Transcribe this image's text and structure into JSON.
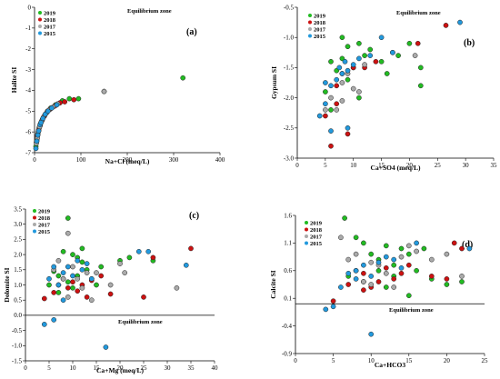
{
  "colors": {
    "2019": "#22bb22",
    "2018": "#cc1111",
    "2017": "#aaaaaa",
    "2015": "#2299dd"
  },
  "chart_data": [
    {
      "type": "scatter",
      "panel_label": "(a)",
      "xlabel": "Na+Cl (meq/L)",
      "ylabel": "Halite SI",
      "xlim": [
        0,
        400
      ],
      "ylim": [
        -7,
        0
      ],
      "xticks": [
        0,
        100,
        200,
        300,
        400
      ],
      "yticks": [
        0,
        -1,
        -2,
        -3,
        -4,
        -5,
        -6,
        -7
      ],
      "zero_line": false,
      "annotation": "Equilibrium zone",
      "legend": [
        "2019",
        "2018",
        "2017",
        "2015"
      ],
      "series": [
        {
          "name": "2019",
          "points": [
            [
              3,
              -6.7
            ],
            [
              5,
              -6.4
            ],
            [
              7,
              -6.1
            ],
            [
              10,
              -5.8
            ],
            [
              13,
              -5.6
            ],
            [
              17,
              -5.4
            ],
            [
              22,
              -5.2
            ],
            [
              28,
              -5.0
            ],
            [
              35,
              -4.85
            ],
            [
              45,
              -4.7
            ],
            [
              60,
              -4.5
            ],
            [
              75,
              -4.4
            ],
            [
              95,
              -4.4
            ],
            [
              150,
              -4.05
            ],
            [
              320,
              -3.4
            ]
          ]
        },
        {
          "name": "2018",
          "points": [
            [
              4,
              -6.5
            ],
            [
              6,
              -6.2
            ],
            [
              9,
              -5.9
            ],
            [
              12,
              -5.7
            ],
            [
              16,
              -5.45
            ],
            [
              21,
              -5.25
            ],
            [
              27,
              -5.05
            ],
            [
              34,
              -4.9
            ],
            [
              44,
              -4.75
            ],
            [
              55,
              -4.6
            ],
            [
              65,
              -4.55
            ],
            [
              85,
              -4.45
            ]
          ]
        },
        {
          "name": "2017",
          "points": [
            [
              4,
              -6.55
            ],
            [
              6,
              -6.3
            ],
            [
              8,
              -6.0
            ],
            [
              11,
              -5.75
            ],
            [
              15,
              -5.5
            ],
            [
              19,
              -5.3
            ],
            [
              25,
              -5.1
            ],
            [
              31,
              -4.95
            ],
            [
              40,
              -4.8
            ],
            [
              50,
              -4.65
            ],
            [
              150,
              -4.05
            ]
          ]
        },
        {
          "name": "2015",
          "points": [
            [
              3,
              -6.8
            ],
            [
              5,
              -6.45
            ],
            [
              7,
              -6.15
            ],
            [
              9,
              -5.95
            ],
            [
              12,
              -5.65
            ],
            [
              14,
              -5.55
            ],
            [
              18,
              -5.35
            ],
            [
              23,
              -5.15
            ],
            [
              29,
              -5.0
            ],
            [
              37,
              -4.85
            ],
            [
              48,
              -4.7
            ]
          ]
        }
      ]
    },
    {
      "type": "scatter",
      "panel_label": "(b)",
      "xlabel": "Ca+SO4 (meq/L)",
      "ylabel": "Gypsum SI",
      "xlim": [
        0,
        35
      ],
      "ylim": [
        -3.0,
        -0.5
      ],
      "xticks": [
        0,
        5,
        10,
        15,
        20,
        25,
        30,
        35
      ],
      "yticks": [
        -0.5,
        -1.0,
        -1.5,
        -2.0,
        -2.5,
        -3.0
      ],
      "zero_line": false,
      "annotation": "Equilibrium zone",
      "legend": [
        "2019",
        "2018",
        "2017",
        "2015"
      ],
      "series": [
        {
          "name": "2019",
          "points": [
            [
              8,
              -1.0
            ],
            [
              9,
              -1.15
            ],
            [
              6,
              -1.4
            ],
            [
              7,
              -1.55
            ],
            [
              10,
              -1.5
            ],
            [
              12,
              -1.3
            ],
            [
              13,
              -1.2
            ],
            [
              15,
              -1.4
            ],
            [
              16,
              -1.6
            ],
            [
              18,
              -1.3
            ],
            [
              20,
              -1.1
            ],
            [
              22,
              -1.5
            ],
            [
              22,
              -1.8
            ],
            [
              5,
              -1.9
            ],
            [
              6,
              -2.2
            ],
            [
              9,
              -1.7
            ],
            [
              11,
              -2.0
            ],
            [
              8,
              -1.35
            ],
            [
              11,
              -1.1
            ]
          ]
        },
        {
          "name": "2018",
          "points": [
            [
              5,
              -2.3
            ],
            [
              6,
              -2.8
            ],
            [
              7,
              -1.8
            ],
            [
              8,
              -1.6
            ],
            [
              10,
              -1.5
            ],
            [
              12,
              -1.5
            ],
            [
              9,
              -2.6
            ],
            [
              26.5,
              -0.8
            ],
            [
              21.5,
              -1.1
            ],
            [
              14,
              -1.4
            ],
            [
              7,
              -2.1
            ]
          ]
        },
        {
          "name": "2017",
          "points": [
            [
              6,
              -2.0
            ],
            [
              7,
              -2.2
            ],
            [
              8,
              -1.75
            ],
            [
              9,
              -1.6
            ],
            [
              10,
              -1.85
            ],
            [
              11,
              -1.9
            ],
            [
              12,
              -1.45
            ],
            [
              5,
              -2.2
            ],
            [
              8,
              -2.05
            ],
            [
              17,
              -1.25
            ],
            [
              21,
              -1.3
            ]
          ]
        },
        {
          "name": "2015",
          "points": [
            [
              4,
              -2.3
            ],
            [
              5,
              -2.1
            ],
            [
              6,
              -1.8
            ],
            [
              7,
              -1.7
            ],
            [
              7.5,
              -1.5
            ],
            [
              8,
              -1.6
            ],
            [
              8.5,
              -1.4
            ],
            [
              9,
              -1.55
            ],
            [
              10,
              -1.45
            ],
            [
              11,
              -1.35
            ],
            [
              13,
              -1.3
            ],
            [
              15,
              -1.0
            ],
            [
              17,
              -1.25
            ],
            [
              29,
              -0.75
            ],
            [
              9,
              -2.5
            ],
            [
              6,
              -2.55
            ],
            [
              5,
              -1.75
            ]
          ]
        }
      ]
    },
    {
      "type": "scatter",
      "panel_label": "(c)",
      "xlabel": "Ca+Mg (meq/L)",
      "ylabel": "Dolomite SI",
      "xlim": [
        0,
        40
      ],
      "ylim": [
        -1.5,
        3.5
      ],
      "xticks": [
        0,
        5,
        10,
        15,
        20,
        25,
        30,
        35,
        40
      ],
      "yticks": [
        3.5,
        3.0,
        2.5,
        2.0,
        1.5,
        1.0,
        0.5,
        0.0,
        -0.5,
        -1.0,
        -1.5
      ],
      "zero_line": true,
      "annotation": "Equilibrium zone",
      "legend": [
        "2019",
        "2018",
        "2017",
        "2015"
      ],
      "series": [
        {
          "name": "2019",
          "points": [
            [
              9,
              3.2
            ],
            [
              8,
              2.1
            ],
            [
              10,
              2.0
            ],
            [
              11,
              1.9
            ],
            [
              12,
              1.75
            ],
            [
              6,
              1.45
            ],
            [
              7,
              1.3
            ],
            [
              13,
              1.5
            ],
            [
              14,
              1.2
            ],
            [
              15,
              1.0
            ],
            [
              20,
              1.8
            ],
            [
              22,
              1.9
            ],
            [
              27,
              1.8
            ],
            [
              9,
              1.1
            ],
            [
              10,
              0.9
            ],
            [
              5,
              1.0
            ],
            [
              7,
              0.75
            ],
            [
              11,
              1.3
            ],
            [
              16,
              1.6
            ],
            [
              12,
              2.2
            ]
          ]
        },
        {
          "name": "2018",
          "points": [
            [
              4,
              0.55
            ],
            [
              6,
              0.75
            ],
            [
              7,
              1.0
            ],
            [
              8,
              1.2
            ],
            [
              9,
              0.9
            ],
            [
              10,
              1.1
            ],
            [
              11,
              0.8
            ],
            [
              12,
              1.0
            ],
            [
              13,
              0.6
            ],
            [
              14,
              1.15
            ],
            [
              16,
              1.3
            ],
            [
              18,
              0.7
            ],
            [
              27,
              1.9
            ],
            [
              35,
              2.2
            ],
            [
              25,
              0.6
            ]
          ]
        },
        {
          "name": "2017",
          "points": [
            [
              6,
              1.5
            ],
            [
              7,
              1.8
            ],
            [
              8,
              1.2
            ],
            [
              9,
              2.7
            ],
            [
              10,
              1.6
            ],
            [
              11,
              1.2
            ],
            [
              12,
              0.9
            ],
            [
              13,
              1.4
            ],
            [
              14,
              0.5
            ],
            [
              15,
              1.4
            ],
            [
              20,
              1.7
            ],
            [
              21,
              1.4
            ],
            [
              32,
              0.9
            ],
            [
              18,
              1.0
            ],
            [
              9,
              0.6
            ]
          ]
        },
        {
          "name": "2015",
          "points": [
            [
              4,
              -0.3
            ],
            [
              6,
              -0.15
            ],
            [
              5,
              1.2
            ],
            [
              6,
              1.6
            ],
            [
              7,
              1.0
            ],
            [
              8,
              1.4
            ],
            [
              9,
              1.6
            ],
            [
              10,
              1.3
            ],
            [
              11,
              1.8
            ],
            [
              12,
              1.5
            ],
            [
              13,
              1.7
            ],
            [
              14,
              1.2
            ],
            [
              17,
              -1.05
            ],
            [
              24,
              2.1
            ],
            [
              26,
              2.1
            ],
            [
              34,
              1.65
            ],
            [
              8,
              0.5
            ]
          ]
        }
      ]
    },
    {
      "type": "scatter",
      "panel_label": "(d)",
      "xlabel": "Ca+HCO3",
      "ylabel": "Calcite SI",
      "xlim": [
        0,
        25
      ],
      "ylim": [
        -0.9,
        1.6
      ],
      "xticks": [
        0,
        5,
        10,
        15,
        20,
        25
      ],
      "yticks": [
        1.6,
        1.1,
        0.6,
        0.1,
        -0.4,
        -0.9
      ],
      "zero_line": true,
      "annotation": "Equilibrium zone",
      "legend": [
        "2019",
        "2018",
        "2017",
        "2015"
      ],
      "series": [
        {
          "name": "2019",
          "points": [
            [
              6.5,
              1.55
            ],
            [
              8,
              1.2
            ],
            [
              9,
              1.1
            ],
            [
              10,
              0.9
            ],
            [
              11,
              0.8
            ],
            [
              12,
              1.05
            ],
            [
              13,
              0.7
            ],
            [
              14,
              1.0
            ],
            [
              15,
              0.9
            ],
            [
              16,
              0.6
            ],
            [
              18,
              0.45
            ],
            [
              20,
              0.35
            ],
            [
              22,
              0.4
            ],
            [
              7,
              0.5
            ],
            [
              9,
              0.4
            ],
            [
              11,
              0.6
            ],
            [
              15,
              0.15
            ],
            [
              12,
              0.3
            ],
            [
              13,
              0.5
            ],
            [
              17,
              1.0
            ]
          ]
        },
        {
          "name": "2018",
          "points": [
            [
              5,
              0.05
            ],
            [
              7,
              0.35
            ],
            [
              8,
              0.6
            ],
            [
              9,
              0.55
            ],
            [
              10,
              0.3
            ],
            [
              11,
              0.4
            ],
            [
              12,
              0.65
            ],
            [
              13,
              0.45
            ],
            [
              14,
              0.55
            ],
            [
              15,
              0.7
            ],
            [
              18,
              0.5
            ],
            [
              20,
              0.45
            ],
            [
              21,
              1.1
            ],
            [
              22,
              1.0
            ],
            [
              9,
              0.25
            ]
          ]
        },
        {
          "name": "2017",
          "points": [
            [
              6,
              1.2
            ],
            [
              7,
              0.8
            ],
            [
              8,
              0.9
            ],
            [
              9,
              0.4
            ],
            [
              10,
              0.35
            ],
            [
              11,
              0.7
            ],
            [
              12,
              0.55
            ],
            [
              13,
              0.3
            ],
            [
              15,
              1.05
            ],
            [
              16,
              0.95
            ],
            [
              18,
              0.8
            ],
            [
              20,
              0.9
            ],
            [
              22,
              0.5
            ],
            [
              10,
              0.75
            ],
            [
              14,
              0.85
            ]
          ]
        },
        {
          "name": "2015",
          "points": [
            [
              4,
              -0.1
            ],
            [
              5,
              -0.05
            ],
            [
              6,
              0.3
            ],
            [
              7,
              0.55
            ],
            [
              8,
              0.6
            ],
            [
              9,
              0.7
            ],
            [
              10,
              -0.55
            ],
            [
              11,
              0.75
            ],
            [
              12,
              0.85
            ],
            [
              13,
              0.8
            ],
            [
              14,
              0.65
            ],
            [
              16,
              1.1
            ],
            [
              23,
              1.0
            ],
            [
              8,
              0.45
            ],
            [
              10,
              0.5
            ]
          ]
        }
      ]
    }
  ]
}
